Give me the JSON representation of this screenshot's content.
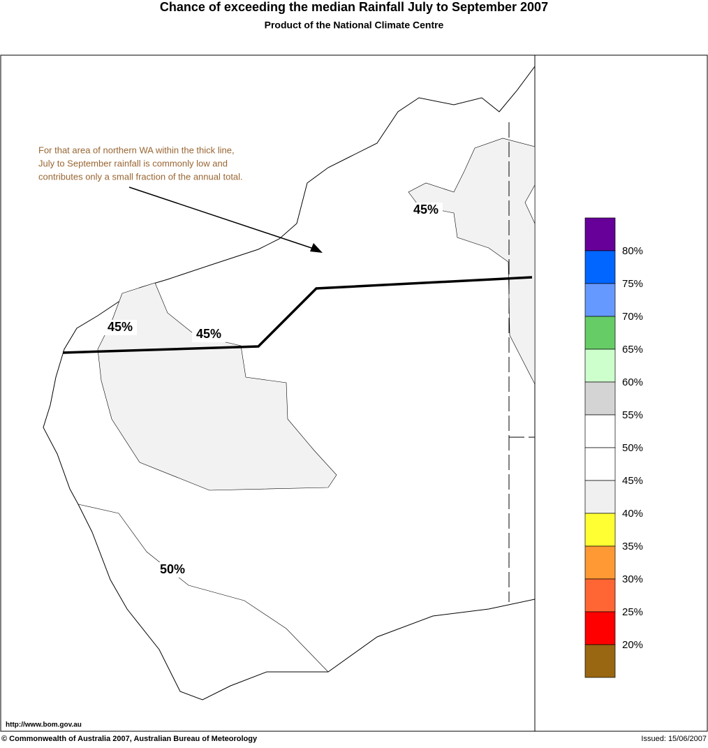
{
  "header": {
    "title": "Chance of exceeding the median Rainfall July to September 2007",
    "subtitle": "Product of the National Climate Centre"
  },
  "annotation": {
    "lines": [
      "For that area of northern WA within the thick line,",
      "July to September rainfall is commonly low and",
      "contributes only a small fraction of the annual total."
    ]
  },
  "contour_labels": [
    "45%",
    "45%",
    "45%",
    "50%"
  ],
  "legend": {
    "colors": [
      "#660099",
      "#0066ff",
      "#6699ff",
      "#66cc66",
      "#ccffcc",
      "#d4d4d4",
      "#ffffff",
      "#ffffff",
      "#f0f0f0",
      "#ffff33",
      "#ff9933",
      "#ff6633",
      "#ff0000",
      "#996611"
    ],
    "labels": [
      "80%",
      "75%",
      "70%",
      "65%",
      "60%",
      "55%",
      "50%",
      "45%",
      "40%",
      "35%",
      "30%",
      "25%",
      "20%"
    ]
  },
  "footer": {
    "url": "http://www.bom.gov.au",
    "copyright": "© Commonwealth of Australia 2007, Australian Bureau of Meteorology",
    "issued": "Issued: 15/06/2007"
  }
}
